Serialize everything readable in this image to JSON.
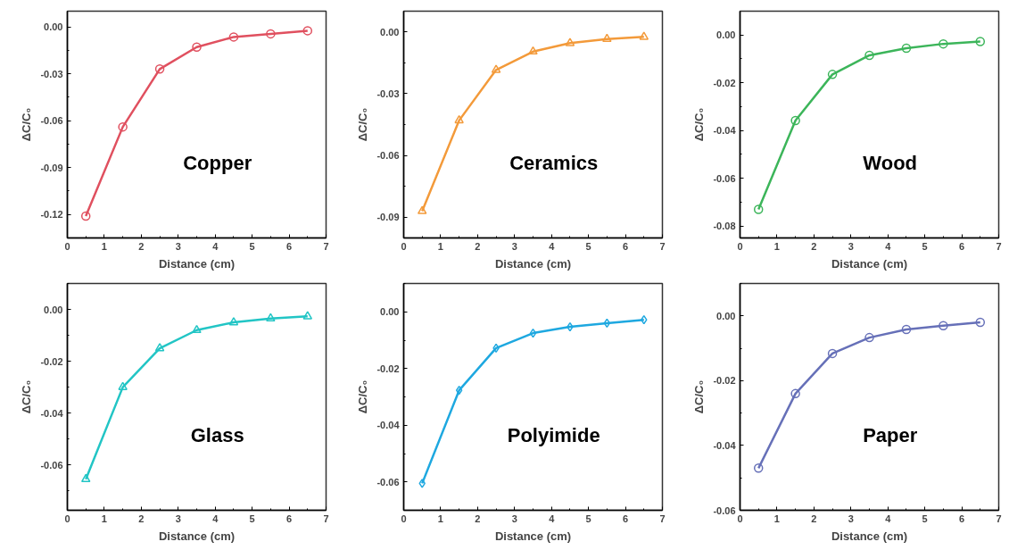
{
  "chart_data": [
    {
      "type": "line",
      "xlabel": "Distance (cm)",
      "ylabel": "ΔC/C₀",
      "x": [
        0.5,
        1.5,
        2.5,
        3.5,
        4.5,
        5.5,
        6.5
      ],
      "xlim": [
        0,
        7
      ],
      "xticks": [
        0,
        1,
        2,
        3,
        4,
        5,
        6,
        7
      ],
      "ylim": [
        -0.135,
        0.01
      ],
      "yticks": [
        {
          "value": -0.12,
          "label": "-0.12"
        },
        {
          "value": -0.09,
          "label": "-0.09"
        },
        {
          "value": -0.06,
          "label": "-0.06"
        },
        {
          "value": -0.03,
          "label": "-0.03"
        },
        {
          "value": 0,
          "label": "0.00"
        }
      ],
      "grid": false,
      "marker": "circle",
      "series": [
        {
          "name": "Copper",
          "color": "#e0505f",
          "values": [
            -0.121,
            -0.064,
            -0.027,
            -0.013,
            -0.0065,
            -0.0045,
            -0.0025
          ]
        }
      ]
    },
    {
      "type": "line",
      "xlabel": "Distance (cm)",
      "ylabel": "ΔC/C₀",
      "x": [
        0.5,
        1.5,
        2.5,
        3.5,
        4.5,
        5.5,
        6.5
      ],
      "xlim": [
        0,
        7
      ],
      "xticks": [
        0,
        1,
        2,
        3,
        4,
        5,
        6,
        7
      ],
      "ylim": [
        -0.1,
        0.01
      ],
      "yticks": [
        {
          "value": -0.09,
          "label": "-0.09"
        },
        {
          "value": -0.06,
          "label": "-0.06"
        },
        {
          "value": -0.03,
          "label": "-0.03"
        },
        {
          "value": 0,
          "label": "0.00"
        }
      ],
      "grid": false,
      "marker": "triangle",
      "series": [
        {
          "name": "Ceramics",
          "color": "#f39a3a",
          "values": [
            -0.087,
            -0.043,
            -0.0185,
            -0.0096,
            -0.0055,
            -0.0035,
            -0.0025
          ]
        }
      ]
    },
    {
      "type": "line",
      "xlabel": "Distance (cm)",
      "ylabel": "ΔC/C₀",
      "x": [
        0.5,
        1.5,
        2.5,
        3.5,
        4.5,
        5.5,
        6.5
      ],
      "xlim": [
        0,
        7
      ],
      "xticks": [
        0,
        1,
        2,
        3,
        4,
        5,
        6,
        7
      ],
      "ylim": [
        -0.085,
        0.01
      ],
      "yticks": [
        {
          "value": -0.08,
          "label": "-0.08"
        },
        {
          "value": -0.06,
          "label": "-0.06"
        },
        {
          "value": -0.04,
          "label": "-0.04"
        },
        {
          "value": -0.02,
          "label": "-0.02"
        },
        {
          "value": 0,
          "label": "0.00"
        }
      ],
      "grid": false,
      "marker": "circle",
      "series": [
        {
          "name": "Wood",
          "color": "#3cb55a",
          "values": [
            -0.073,
            -0.0358,
            -0.0165,
            -0.0085,
            -0.0055,
            -0.0037,
            -0.0027
          ]
        }
      ]
    },
    {
      "type": "line",
      "xlabel": "Distance (cm)",
      "ylabel": "ΔC/C₀",
      "x": [
        0.5,
        1.5,
        2.5,
        3.5,
        4.5,
        5.5,
        6.5
      ],
      "xlim": [
        0,
        7
      ],
      "xticks": [
        0,
        1,
        2,
        3,
        4,
        5,
        6,
        7
      ],
      "ylim": [
        -0.0775,
        0.01
      ],
      "yticks": [
        {
          "value": -0.06,
          "label": "-0.06"
        },
        {
          "value": -0.04,
          "label": "-0.04"
        },
        {
          "value": -0.02,
          "label": "-0.02"
        },
        {
          "value": 0,
          "label": "0.00"
        }
      ],
      "grid": false,
      "marker": "triangle",
      "series": [
        {
          "name": "Glass",
          "color": "#22c5c5",
          "values": [
            -0.0655,
            -0.03,
            -0.015,
            -0.008,
            -0.005,
            -0.0035,
            -0.0027
          ]
        }
      ]
    },
    {
      "type": "line",
      "xlabel": "Distance (cm)",
      "ylabel": "ΔC/C₀",
      "x": [
        0.5,
        1.5,
        2.5,
        3.5,
        4.5,
        5.5,
        6.5
      ],
      "xlim": [
        0,
        7
      ],
      "xticks": [
        0,
        1,
        2,
        3,
        4,
        5,
        6,
        7
      ],
      "ylim": [
        -0.07,
        0.01
      ],
      "yticks": [
        {
          "value": -0.06,
          "label": "-0.06"
        },
        {
          "value": -0.04,
          "label": "-0.04"
        },
        {
          "value": -0.02,
          "label": "-0.02"
        },
        {
          "value": 0,
          "label": "0.00"
        }
      ],
      "grid": false,
      "marker": "diamond",
      "series": [
        {
          "name": "Polyimide",
          "color": "#1ea8e0",
          "values": [
            -0.0605,
            -0.0277,
            -0.0128,
            -0.0075,
            -0.0053,
            -0.004,
            -0.0028
          ]
        }
      ]
    },
    {
      "type": "line",
      "xlabel": "Distance (cm)",
      "ylabel": "ΔC/C₀",
      "x": [
        0.5,
        1.5,
        2.5,
        3.5,
        4.5,
        5.5,
        6.5
      ],
      "xlim": [
        0,
        7
      ],
      "xticks": [
        0,
        1,
        2,
        3,
        4,
        5,
        6,
        7
      ],
      "ylim": [
        -0.06,
        0.01
      ],
      "yticks": [
        {
          "value": -0.06,
          "label": "-0.06"
        },
        {
          "value": -0.04,
          "label": "-0.04"
        },
        {
          "value": -0.02,
          "label": "-0.02"
        },
        {
          "value": 0,
          "label": "0.00"
        }
      ],
      "grid": false,
      "marker": "circle",
      "series": [
        {
          "name": "Paper",
          "color": "#6670b8",
          "values": [
            -0.047,
            -0.024,
            -0.0116,
            -0.0067,
            -0.0042,
            -0.003,
            -0.002
          ]
        }
      ]
    }
  ]
}
